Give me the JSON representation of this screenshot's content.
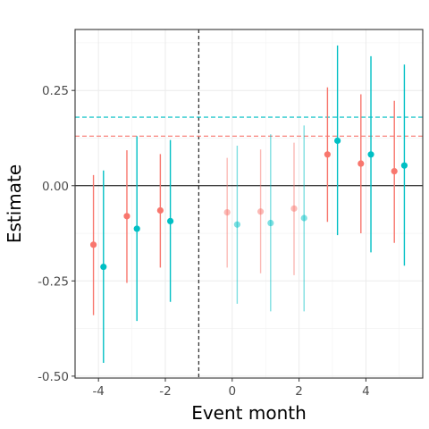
{
  "chart_data": {
    "type": "scatter",
    "title": "",
    "xlabel": "Event month",
    "ylabel": "Estimate",
    "xlim": [
      -4.7,
      5.7
    ],
    "ylim": [
      -0.505,
      0.41
    ],
    "x_ticks": [
      -4,
      -2,
      0,
      2,
      4
    ],
    "x_tick_labels": [
      "-4",
      "-2",
      "0",
      "2",
      "4"
    ],
    "y_ticks": [
      -0.5,
      -0.25,
      0,
      0.25
    ],
    "y_tick_labels": [
      "-0.50",
      "-0.25",
      "0.00",
      "0.25"
    ],
    "grid": true,
    "legend": "none",
    "vline_x": -1,
    "hline_y": 0,
    "series": [
      {
        "color": "#f8766d",
        "ref_line": 0.13,
        "x": [
          -4.15,
          -3.15,
          -2.15,
          -0.15,
          0.85,
          1.85,
          2.85,
          3.85,
          4.85
        ],
        "y": [
          -0.155,
          -0.08,
          -0.065,
          -0.07,
          -0.068,
          -0.06,
          0.082,
          0.058,
          0.038
        ],
        "lower": [
          -0.34,
          -0.255,
          -0.215,
          -0.215,
          -0.23,
          -0.235,
          -0.095,
          -0.125,
          -0.15
        ],
        "upper": [
          0.028,
          0.093,
          0.083,
          0.073,
          0.095,
          0.113,
          0.258,
          0.24,
          0.223
        ],
        "faded": [
          false,
          false,
          false,
          true,
          true,
          true,
          false,
          false,
          false
        ]
      },
      {
        "color": "#00bfc4",
        "ref_line": 0.18,
        "x": [
          -3.85,
          -2.85,
          -1.85,
          0.15,
          1.15,
          2.15,
          3.15,
          4.15,
          5.15
        ],
        "y": [
          -0.213,
          -0.113,
          -0.093,
          -0.102,
          -0.098,
          -0.085,
          0.118,
          0.082,
          0.053
        ],
        "lower": [
          -0.465,
          -0.355,
          -0.305,
          -0.31,
          -0.33,
          -0.33,
          -0.13,
          -0.175,
          -0.21
        ],
        "upper": [
          0.04,
          0.13,
          0.12,
          0.105,
          0.135,
          0.158,
          0.368,
          0.34,
          0.318
        ],
        "faded": [
          false,
          false,
          false,
          true,
          true,
          true,
          false,
          false,
          false
        ]
      }
    ]
  }
}
